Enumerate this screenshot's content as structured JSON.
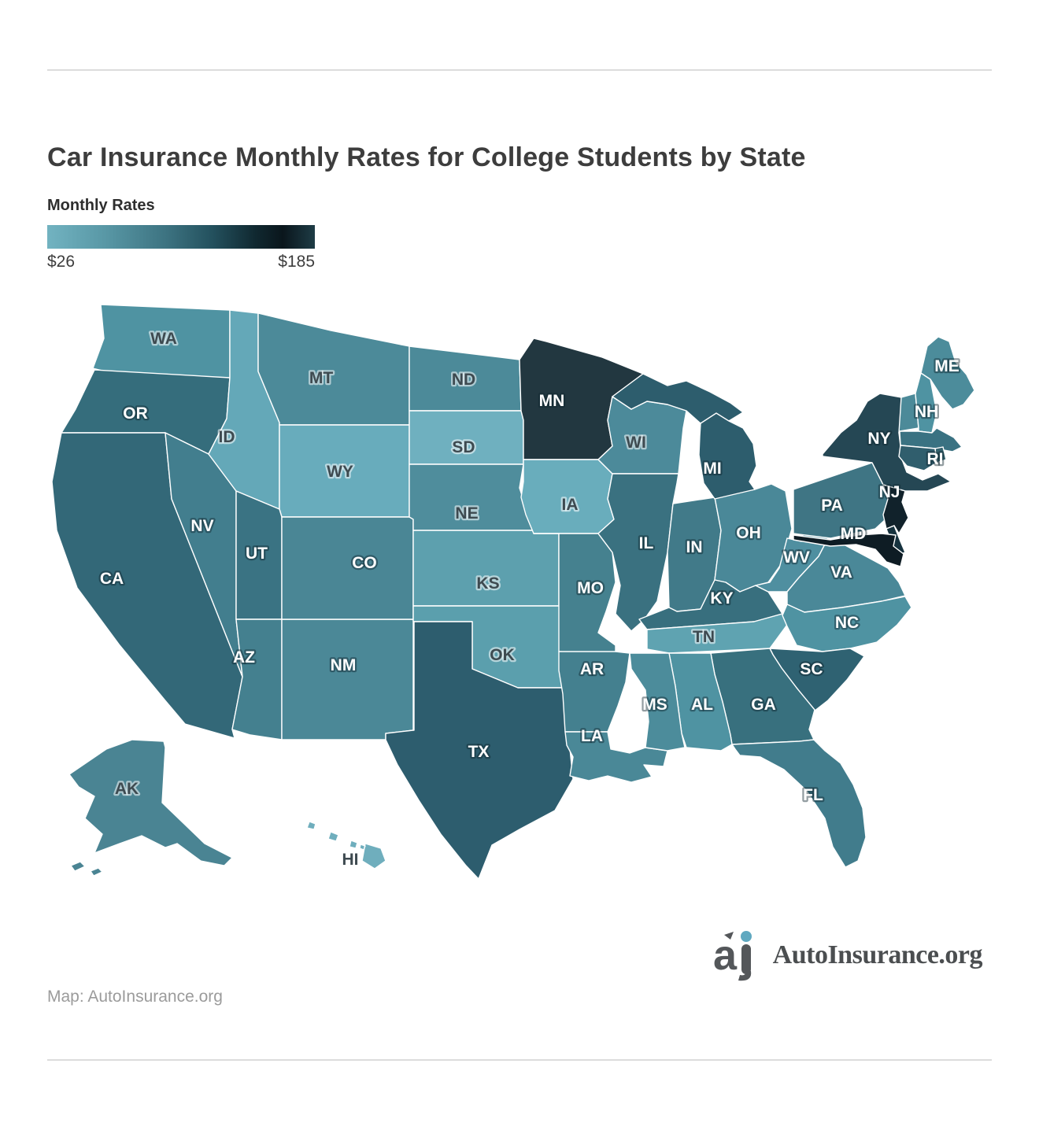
{
  "title": "Car Insurance Monthly Rates for College Students by State",
  "legend": {
    "title": "Monthly Rates",
    "min_label": "$26",
    "max_label": "$185",
    "min_value": 26,
    "max_value": 185,
    "unit": "USD per month",
    "gradient_colors": [
      "#72B3C1",
      "#5897A5",
      "#3C7280",
      "#23505D",
      "#102830",
      "#0A161C",
      "#1E3C46"
    ]
  },
  "map_data": {
    "type": "choropleth",
    "region": "United States",
    "value_encoding": "state fill color encodes monthly rate from $26 (light teal) to $185 (near black)",
    "states": [
      {
        "id": "WA",
        "label": "WA",
        "color": "#4F93A2",
        "label_visible": true,
        "label_style": "dark"
      },
      {
        "id": "OR",
        "label": "OR",
        "color": "#356D7C",
        "label_visible": true,
        "label_style": "light"
      },
      {
        "id": "CA",
        "label": "CA",
        "color": "#336878",
        "label_visible": true,
        "label_style": "light"
      },
      {
        "id": "NV",
        "label": "NV",
        "color": "#427E8E",
        "label_visible": true,
        "label_style": "light"
      },
      {
        "id": "ID",
        "label": "ID",
        "color": "#64A8B8",
        "label_visible": true,
        "label_style": "dark"
      },
      {
        "id": "MT",
        "label": "MT",
        "color": "#4C8A99",
        "label_visible": true,
        "label_style": "dark"
      },
      {
        "id": "WY",
        "label": "WY",
        "color": "#68ACBC",
        "label_visible": true,
        "label_style": "dark"
      },
      {
        "id": "UT",
        "label": "UT",
        "color": "#3A7383",
        "label_visible": true,
        "label_style": "light"
      },
      {
        "id": "AZ",
        "label": "AZ",
        "color": "#44808F",
        "label_visible": true,
        "label_style": "light"
      },
      {
        "id": "NM",
        "label": "NM",
        "color": "#4B8897",
        "label_visible": true,
        "label_style": "light"
      },
      {
        "id": "CO",
        "label": "CO",
        "color": "#4A8695",
        "label_visible": true,
        "label_style": "light"
      },
      {
        "id": "ND",
        "label": "ND",
        "color": "#4C8A99",
        "label_visible": true,
        "label_style": "dark"
      },
      {
        "id": "SD",
        "label": "SD",
        "color": "#6FB0BF",
        "label_visible": true,
        "label_style": "dark"
      },
      {
        "id": "NE",
        "label": "NE",
        "color": "#4F8D9C",
        "label_visible": true,
        "label_style": "dark"
      },
      {
        "id": "KS",
        "label": "KS",
        "color": "#5DA0AE",
        "label_visible": true,
        "label_style": "dark"
      },
      {
        "id": "OK",
        "label": "OK",
        "color": "#5B9FAD",
        "label_visible": true,
        "label_style": "dark"
      },
      {
        "id": "TX",
        "label": "TX",
        "color": "#2D5D6E",
        "label_visible": true,
        "label_style": "light"
      },
      {
        "id": "MN",
        "label": "MN",
        "color": "#223740",
        "label_visible": true,
        "label_style": "light"
      },
      {
        "id": "IA",
        "label": "IA",
        "color": "#69ADBC",
        "label_visible": true,
        "label_style": "dark"
      },
      {
        "id": "MO",
        "label": "MO",
        "color": "#45818F",
        "label_visible": true,
        "label_style": "light"
      },
      {
        "id": "AR",
        "label": "AR",
        "color": "#44808F",
        "label_visible": true,
        "label_style": "light"
      },
      {
        "id": "LA",
        "label": "LA",
        "color": "#4A8897",
        "label_visible": true,
        "label_style": "light"
      },
      {
        "id": "WI",
        "label": "WI",
        "color": "#4C8A9A",
        "label_visible": true,
        "label_style": "dark"
      },
      {
        "id": "IL",
        "label": "IL",
        "color": "#3A7180",
        "label_visible": true,
        "label_style": "light"
      },
      {
        "id": "IN",
        "label": "IN",
        "color": "#417A89",
        "label_visible": true,
        "label_style": "light"
      },
      {
        "id": "OH",
        "label": "OH",
        "color": "#4A8898",
        "label_visible": true,
        "label_style": "light"
      },
      {
        "id": "MI",
        "label": "MI",
        "color": "#2D5D6D",
        "label_visible": true,
        "label_style": "light"
      },
      {
        "id": "KY",
        "label": "KY",
        "color": "#386F7E",
        "label_visible": true,
        "label_style": "light"
      },
      {
        "id": "TN",
        "label": "TN",
        "color": "#5FA3B1",
        "label_visible": true,
        "label_style": "dark"
      },
      {
        "id": "WV",
        "label": "WV",
        "color": "#4F8FA0",
        "label_visible": true,
        "label_style": "light"
      },
      {
        "id": "VA",
        "label": "VA",
        "color": "#4A8898",
        "label_visible": true,
        "label_style": "light"
      },
      {
        "id": "NC",
        "label": "NC",
        "color": "#4F93A2",
        "label_visible": true,
        "label_style": "light"
      },
      {
        "id": "SC",
        "label": "SC",
        "color": "#2F6272",
        "label_visible": true,
        "label_style": "light"
      },
      {
        "id": "GA",
        "label": "GA",
        "color": "#38707E",
        "label_visible": true,
        "label_style": "light"
      },
      {
        "id": "AL",
        "label": "AL",
        "color": "#4F93A2",
        "label_visible": true,
        "label_style": "light"
      },
      {
        "id": "MS",
        "label": "MS",
        "color": "#4C8C9B",
        "label_visible": true,
        "label_style": "light"
      },
      {
        "id": "FL",
        "label": "FL",
        "color": "#417C8C",
        "label_visible": true,
        "label_style": "light"
      },
      {
        "id": "PA",
        "label": "PA",
        "color": "#3F7584",
        "label_visible": true,
        "label_style": "light"
      },
      {
        "id": "NY",
        "label": "NY",
        "color": "#254754",
        "label_visible": true,
        "label_style": "light"
      },
      {
        "id": "VT",
        "label": "",
        "color": "#4C8A99",
        "label_visible": false,
        "label_style": "light"
      },
      {
        "id": "NH",
        "label": "NH",
        "color": "#4F93A2",
        "label_visible": true,
        "label_style": "light"
      },
      {
        "id": "ME",
        "label": "ME",
        "color": "#4C8C9B",
        "label_visible": true,
        "label_style": "light"
      },
      {
        "id": "MA",
        "label": "",
        "color": "#3A7282",
        "label_visible": false,
        "label_style": "light"
      },
      {
        "id": "RI",
        "label": "RI",
        "color": "#35636E",
        "label_visible": true,
        "label_style": "light"
      },
      {
        "id": "CT",
        "label": "",
        "color": "#305E6D",
        "label_visible": false,
        "label_style": "light"
      },
      {
        "id": "NJ",
        "label": "NJ",
        "color": "#11222B",
        "label_visible": true,
        "label_style": "light"
      },
      {
        "id": "DE",
        "label": "",
        "color": "#16323E",
        "label_visible": false,
        "label_style": "light"
      },
      {
        "id": "MD",
        "label": "MD",
        "color": "#0E1C24",
        "label_visible": true,
        "label_style": "light"
      },
      {
        "id": "AK",
        "label": "AK",
        "color": "#4A8493",
        "label_visible": true,
        "label_style": "dark"
      },
      {
        "id": "HI",
        "label": "HI",
        "color": "#6FAEBD",
        "label_visible": true,
        "label_style": "dark"
      }
    ]
  },
  "footer": {
    "source_text": "Map: AutoInsurance.org"
  },
  "logo": {
    "text": "AutoInsurance.org",
    "icon": "ai-monogram",
    "dot_color": "#5FA8C0",
    "text_color": "#4b4e50"
  }
}
